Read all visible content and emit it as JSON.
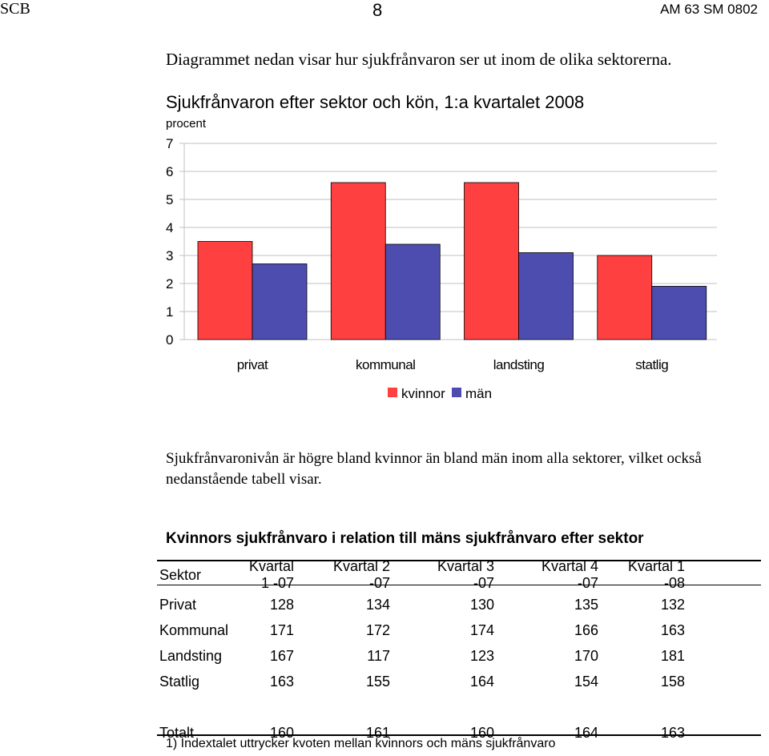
{
  "header": {
    "left": "SCB",
    "center": "8",
    "right": "AM 63 SM 0802"
  },
  "intro": "Diagrammet nedan visar hur sjukfrånvaron ser ut inom de olika sektorerna.",
  "chart_data": {
    "type": "bar",
    "title": "Sjukfrånvaron efter sektor och kön, 1:a kvartalet 2008",
    "ylabel": "procent",
    "xlabel": "",
    "categories": [
      "privat",
      "kommunal",
      "landsting",
      "statlig"
    ],
    "series": [
      {
        "name": "kvinnor",
        "color": "#ff4040",
        "values": [
          3.5,
          5.6,
          5.6,
          3.0
        ]
      },
      {
        "name": "män",
        "color": "#4d4db0",
        "values": [
          2.7,
          3.4,
          3.1,
          1.9
        ]
      }
    ],
    "ylim": [
      0,
      7
    ],
    "yticks": [
      "0",
      "1",
      "2",
      "3",
      "4",
      "5",
      "6",
      "7"
    ],
    "grid": true,
    "legend": "bottom"
  },
  "paragraph": "Sjukfrånvaronivån är högre bland kvinnor än bland män inom alla sektorer, vilket också nedanstående tabell visar.",
  "table": {
    "title": "Kvinnors sjukfrånvaro i relation till mäns sjukfrånvaro efter sektor",
    "headers": [
      "Sektor",
      "Kvartal 1 -07",
      "Kvartal 2 -07",
      "Kvartal 3 -07",
      "Kvartal 4 -07",
      "Kvartal 1 -08"
    ],
    "rows": [
      [
        "Privat",
        "128",
        "134",
        "130",
        "135",
        "132"
      ],
      [
        "Kommunal",
        "171",
        "172",
        "174",
        "166",
        "163"
      ],
      [
        "Landsting",
        "167",
        "117",
        "123",
        "170",
        "181"
      ],
      [
        "Statlig",
        "163",
        "155",
        "164",
        "154",
        "158"
      ]
    ],
    "total": [
      "Totalt",
      "160",
      "161",
      "160",
      "164",
      "163"
    ]
  },
  "footnote": "1) Indextalet uttrycker kvoten mellan kvinnors och mäns sjukfrånvaro"
}
